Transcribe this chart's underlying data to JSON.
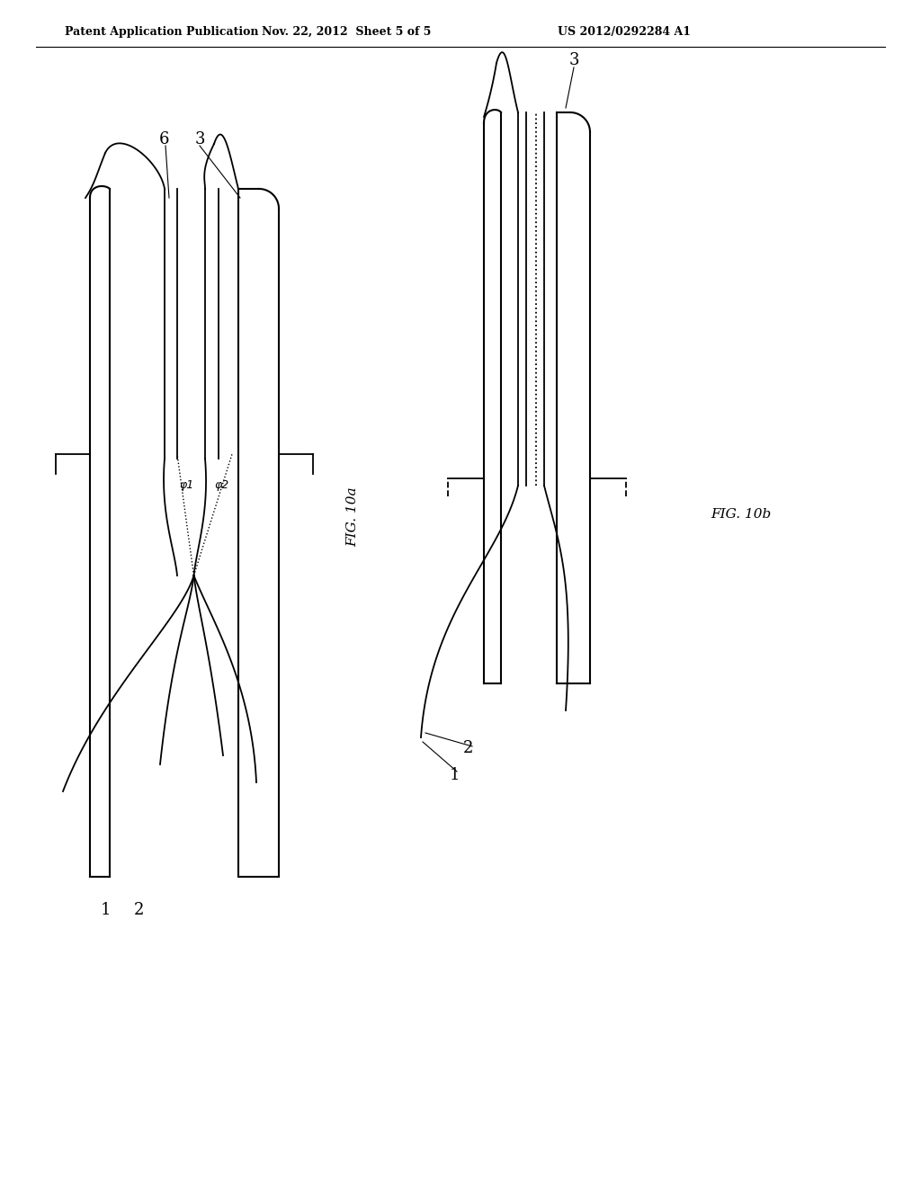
{
  "header_left": "Patent Application Publication",
  "header_center": "Nov. 22, 2012  Sheet 5 of 5",
  "header_right": "US 2012/0292284 A1",
  "fig_label_10a": "FIG. 10a",
  "fig_label_10b": "FIG. 10b",
  "background_color": "#ffffff",
  "line_color": "#000000",
  "phi1_label": "φ1",
  "phi2_label": "φ2"
}
